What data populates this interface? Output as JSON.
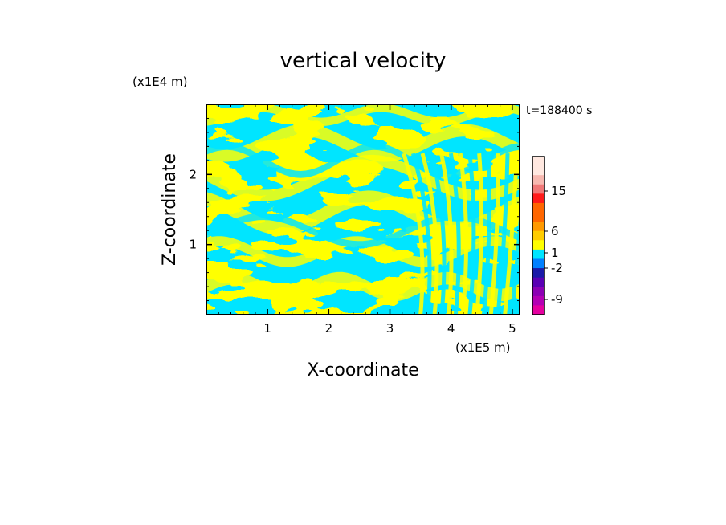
{
  "chart_data": {
    "type": "heatmap",
    "title": "vertical velocity",
    "time_label": "t=188400 s",
    "xlabel": "X-coordinate",
    "ylabel": "Z-coordinate",
    "x_scale_label": "(x1E5 m)",
    "y_scale_label": "(x1E4 m)",
    "xlim": [
      0,
      5.12
    ],
    "ylim": [
      0,
      3.0
    ],
    "x_ticks": [
      1,
      2,
      3,
      4,
      5
    ],
    "y_ticks": [
      1,
      2
    ],
    "grid": false,
    "colors": {
      "positive": "#ffff00",
      "negative": "#00e5ff"
    },
    "colorbar": {
      "labels": [
        {
          "text": "15",
          "value": 15
        },
        {
          "text": "6",
          "value": 6
        },
        {
          "text": "1",
          "value": 1
        },
        {
          "text": "-2",
          "value": -2
        },
        {
          "text": "-9",
          "value": -9
        }
      ],
      "levels": [
        {
          "color": "#ffe8e0"
        },
        {
          "color": "#ffe8e0"
        },
        {
          "color": "#f7b8b0"
        },
        {
          "color": "#f07878"
        },
        {
          "color": "#ff1a1a"
        },
        {
          "color": "#ff6600"
        },
        {
          "color": "#ff6600"
        },
        {
          "color": "#ff9900"
        },
        {
          "color": "#ffcc00"
        },
        {
          "color": "#ffff00"
        },
        {
          "color": "#00e5ff"
        },
        {
          "color": "#0080ff"
        },
        {
          "color": "#1a1aa8"
        },
        {
          "color": "#5a00b4"
        },
        {
          "color": "#8c00b4"
        },
        {
          "color": "#b400b4"
        },
        {
          "color": "#e600a0"
        }
      ]
    }
  }
}
